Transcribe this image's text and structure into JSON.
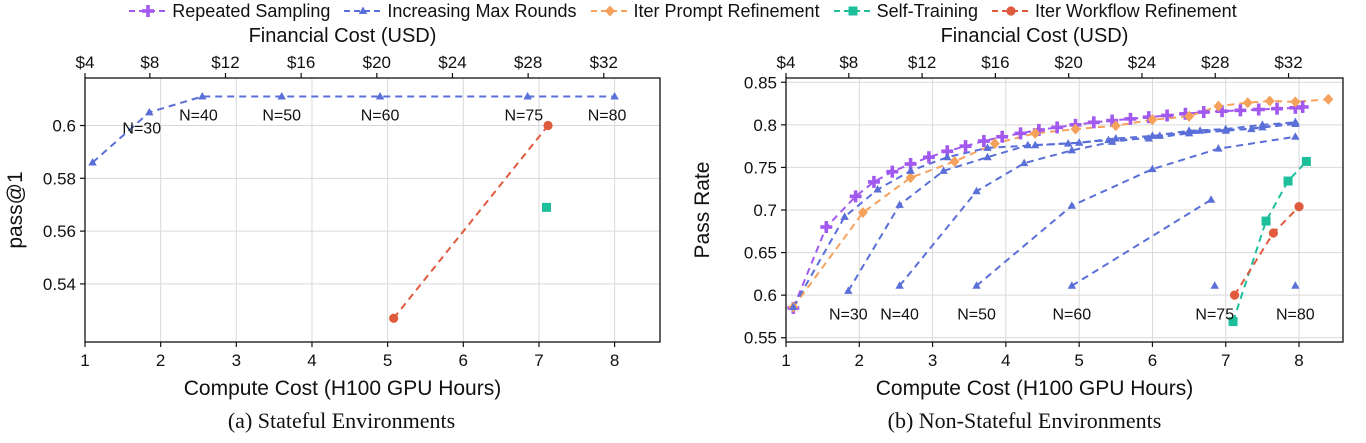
{
  "legend": [
    {
      "name": "Repeated Sampling",
      "color": "#A259F0",
      "marker": "plus"
    },
    {
      "name": "Increasing Max Rounds",
      "color": "#5B6FD8",
      "marker": "triangle"
    },
    {
      "name": "Iter Prompt Refinement",
      "color": "#F5A25D",
      "marker": "diamond"
    },
    {
      "name": "Self-Training",
      "color": "#1DBF9A",
      "marker": "square"
    },
    {
      "name": "Iter Workflow Refinement",
      "color": "#E05A3E",
      "marker": "circle"
    }
  ],
  "chart_data": [
    {
      "type": "line",
      "title": "(a) Stateful Environments",
      "xlabel": "Compute Cost (H100 GPU Hours)",
      "ylabel": "pass@1",
      "x2label": "Financial Cost (USD)",
      "xlim": [
        1,
        8.6
      ],
      "ylim": [
        0.518,
        0.618
      ],
      "xticks": [
        1,
        2,
        3,
        4,
        5,
        6,
        7,
        8
      ],
      "xticklabels": [
        "1",
        "2",
        "3",
        "4",
        "5",
        "6",
        "7",
        "8"
      ],
      "yticks": [
        0.54,
        0.56,
        0.58,
        0.6
      ],
      "yticklabels": [
        "0.54",
        "0.56",
        "0.58",
        "0.6"
      ],
      "x2ticks": [
        1,
        1.857,
        2.857,
        3.857,
        4.857,
        5.857,
        6.857,
        7.857
      ],
      "x2ticklabels": [
        "$4",
        "$8",
        "$12",
        "$16",
        "$20",
        "$24",
        "$28",
        "$32"
      ],
      "grid": true,
      "series": [
        {
          "name": "Increasing Max Rounds",
          "x": [
            1.1,
            1.85,
            2.55,
            3.6,
            4.9,
            6.85,
            8.0
          ],
          "y": [
            0.586,
            0.605,
            0.611,
            0.611,
            0.611,
            0.611,
            0.611
          ]
        },
        {
          "name": "Iter Workflow Refinement",
          "x": [
            5.08,
            7.12
          ],
          "y": [
            0.527,
            0.6
          ]
        },
        {
          "name": "Self-Training",
          "x": [
            7.1
          ],
          "y": [
            0.569
          ]
        }
      ],
      "annotations": [
        {
          "text": "N=30",
          "x": 1.75,
          "y": 0.603
        },
        {
          "text": "N=40",
          "x": 2.5,
          "y": 0.608
        },
        {
          "text": "N=50",
          "x": 3.6,
          "y": 0.608
        },
        {
          "text": "N=60",
          "x": 4.9,
          "y": 0.608
        },
        {
          "text": "N=75",
          "x": 6.8,
          "y": 0.608
        },
        {
          "text": "N=80",
          "x": 7.9,
          "y": 0.608
        }
      ]
    },
    {
      "type": "line",
      "title": "(b) Non-Stateful Environments",
      "xlabel": "Compute Cost (H100 GPU Hours)",
      "ylabel": "Pass Rate",
      "x2label": "Financial Cost (USD)",
      "xlim": [
        1,
        8.6
      ],
      "ylim": [
        0.545,
        0.855
      ],
      "xticks": [
        1,
        2,
        3,
        4,
        5,
        6,
        7,
        8
      ],
      "xticklabels": [
        "1",
        "2",
        "3",
        "4",
        "5",
        "6",
        "7",
        "8"
      ],
      "yticks": [
        0.55,
        0.6,
        0.65,
        0.7,
        0.75,
        0.8,
        0.85
      ],
      "yticklabels": [
        "0.55",
        "0.6",
        "0.65",
        "0.7",
        "0.75",
        "0.8",
        "0.85"
      ],
      "x2ticks": [
        1,
        1.857,
        2.857,
        3.857,
        4.857,
        5.857,
        6.857,
        7.857
      ],
      "x2ticklabels": [
        "$4",
        "$8",
        "$12",
        "$16",
        "$20",
        "$24",
        "$28",
        "$32"
      ],
      "grid": true,
      "series": [
        {
          "name": "Repeated Sampling",
          "x": [
            1.1,
            1.55,
            1.95,
            2.2,
            2.45,
            2.7,
            2.95,
            3.2,
            3.45,
            3.7,
            3.95,
            4.2,
            4.45,
            4.7,
            4.95,
            5.2,
            5.45,
            5.7,
            5.95,
            6.2,
            6.45,
            6.7,
            6.95,
            7.2,
            7.45,
            7.7,
            7.95,
            8.05
          ],
          "y": [
            0.585,
            0.68,
            0.716,
            0.733,
            0.745,
            0.754,
            0.762,
            0.769,
            0.775,
            0.781,
            0.786,
            0.79,
            0.794,
            0.797,
            0.8,
            0.803,
            0.805,
            0.807,
            0.809,
            0.811,
            0.813,
            0.815,
            0.816,
            0.817,
            0.818,
            0.819,
            0.82,
            0.821
          ]
        },
        {
          "name": "Iter Prompt Refinement",
          "x": [
            1.1,
            2.05,
            2.7,
            3.3,
            3.85,
            4.4,
            4.95,
            5.5,
            6.0,
            6.5,
            6.9,
            7.3,
            7.6,
            7.95,
            8.4
          ],
          "y": [
            0.586,
            0.697,
            0.738,
            0.757,
            0.778,
            0.79,
            0.795,
            0.799,
            0.806,
            0.81,
            0.822,
            0.826,
            0.828,
            0.827,
            0.83
          ]
        },
        {
          "name": "Increasing Max Rounds",
          "x": [
            1.1,
            1.8,
            2.25,
            2.7,
            3.2,
            3.75,
            4.4,
            5.0,
            5.5,
            6.0,
            6.5,
            7.0,
            7.5,
            7.95
          ],
          "y": [
            0.586,
            0.692,
            0.724,
            0.746,
            0.762,
            0.773,
            0.776,
            0.779,
            0.784,
            0.787,
            0.793,
            0.795,
            0.8,
            0.803
          ]
        },
        {
          "name": "Increasing Max Rounds",
          "x": [
            1.85,
            2.55,
            3.15,
            3.75,
            4.3,
            4.85,
            5.4,
            5.95,
            6.5,
            7.0,
            7.5,
            7.95
          ],
          "y": [
            0.605,
            0.706,
            0.746,
            0.762,
            0.776,
            0.778,
            0.782,
            0.784,
            0.79,
            0.793,
            0.797,
            0.801
          ]
        },
        {
          "name": "Increasing Max Rounds",
          "x": [
            2.55,
            3.6,
            4.25,
            4.9,
            5.45,
            6.1,
            6.65,
            7.35,
            7.95
          ],
          "y": [
            0.611,
            0.722,
            0.755,
            0.77,
            0.78,
            0.787,
            0.793,
            0.795,
            0.803
          ]
        },
        {
          "name": "Increasing Max Rounds",
          "x": [
            3.6,
            4.9,
            6.0,
            6.9,
            7.95
          ],
          "y": [
            0.611,
            0.705,
            0.748,
            0.772,
            0.786
          ]
        },
        {
          "name": "Increasing Max Rounds",
          "x": [
            4.9,
            6.8
          ],
          "y": [
            0.611,
            0.712
          ]
        },
        {
          "name": "Self-Training",
          "x": [
            7.1,
            7.55,
            7.85,
            8.1
          ],
          "y": [
            0.569,
            0.687,
            0.734,
            0.757
          ]
        },
        {
          "name": "Iter Workflow Refinement",
          "x": [
            7.12,
            7.65,
            8.0
          ],
          "y": [
            0.6,
            0.673,
            0.704
          ]
        }
      ],
      "extra_points": [
        {
          "name": "Increasing Max Rounds",
          "x": [
            6.85,
            7.95
          ],
          "y": [
            0.611,
            0.611
          ]
        }
      ],
      "annotations": [
        {
          "text": "N=30",
          "x": 1.85,
          "y": 0.59
        },
        {
          "text": "N=40",
          "x": 2.55,
          "y": 0.59
        },
        {
          "text": "N=50",
          "x": 3.6,
          "y": 0.59
        },
        {
          "text": "N=60",
          "x": 4.9,
          "y": 0.59
        },
        {
          "text": "N=75",
          "x": 6.85,
          "y": 0.59
        },
        {
          "text": "N=80",
          "x": 7.95,
          "y": 0.59
        }
      ]
    }
  ]
}
